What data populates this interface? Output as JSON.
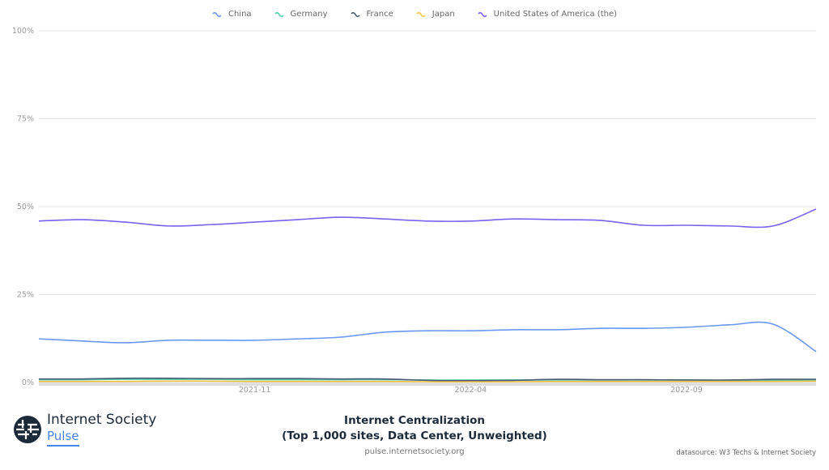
{
  "chart_data": {
    "type": "line",
    "title": "Internet Centralization",
    "subtitle": "(Top 1,000 sites, Data Center, Unweighted)",
    "x": [
      "2021-06",
      "2021-07",
      "2021-08",
      "2021-09",
      "2021-10",
      "2021-11",
      "2021-12",
      "2022-01",
      "2022-02",
      "2022-03",
      "2022-04",
      "2022-05",
      "2022-06",
      "2022-07",
      "2022-08",
      "2022-09",
      "2022-10",
      "2022-11",
      "2022-12"
    ],
    "x_tick_labels": [
      "2021-11",
      "2022-04",
      "2022-09"
    ],
    "y_tick_labels": [
      "0%",
      "25%",
      "50%",
      "75%",
      "100%"
    ],
    "ylim": [
      0,
      100
    ],
    "grid": true,
    "legend_position": "top",
    "series": [
      {
        "name": "China",
        "color": "#6b98f7",
        "values": [
          12.4,
          11.8,
          11.3,
          12.0,
          12.0,
          12.0,
          12.4,
          12.9,
          14.3,
          14.7,
          14.7,
          15.0,
          15.0,
          15.4,
          15.4,
          15.7,
          16.4,
          16.6,
          8.8
        ]
      },
      {
        "name": "Germany",
        "color": "#4fd1a5",
        "values": [
          0.8,
          0.8,
          0.9,
          0.9,
          0.9,
          0.8,
          0.8,
          0.8,
          0.8,
          0.7,
          0.7,
          0.7,
          0.7,
          0.7,
          0.7,
          0.7,
          0.6,
          0.6,
          0.6
        ]
      },
      {
        "name": "France",
        "color": "#4a5a7a",
        "values": [
          1.0,
          1.0,
          1.2,
          1.2,
          1.1,
          1.1,
          1.1,
          1.0,
          1.0,
          0.6,
          0.5,
          0.6,
          0.9,
          0.8,
          0.8,
          0.7,
          0.7,
          0.9,
          0.9
        ]
      },
      {
        "name": "Japan",
        "color": "#f6c343",
        "values": [
          0.3,
          0.3,
          0.3,
          0.4,
          0.4,
          0.3,
          0.3,
          0.3,
          0.3,
          0.2,
          0.2,
          0.2,
          0.3,
          0.3,
          0.3,
          0.3,
          0.3,
          0.3,
          0.4
        ]
      },
      {
        "name": "United States of America (the)",
        "color": "#7b61f0",
        "values": [
          45.9,
          46.3,
          45.6,
          44.5,
          44.9,
          45.6,
          46.3,
          47.0,
          46.5,
          45.9,
          45.9,
          46.5,
          46.3,
          46.1,
          44.7,
          44.7,
          44.5,
          44.5,
          49.3
        ]
      }
    ]
  },
  "footer": {
    "brand_name": "Internet Society",
    "brand_sub": "Pulse",
    "url": "pulse.internetsociety.org",
    "datasource": "datasource: W3 Techs & Internet Society"
  }
}
